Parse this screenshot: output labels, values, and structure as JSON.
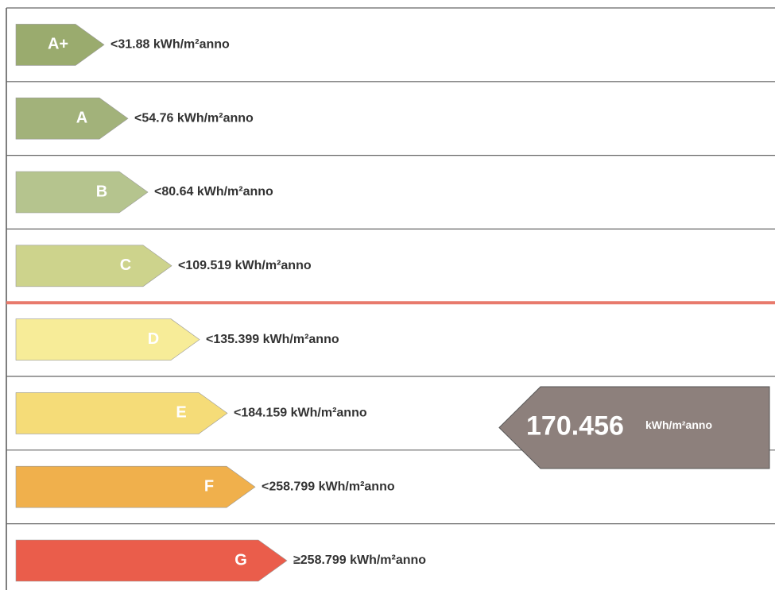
{
  "classes": [
    {
      "label": "A+",
      "threshold": "<31.88 kWh/m²anno",
      "color": "#9aab6e"
    },
    {
      "label": "A",
      "threshold": "<54.76 kWh/m²anno",
      "color": "#a2b27a"
    },
    {
      "label": "B",
      "threshold": "<80.64 kWh/m²anno",
      "color": "#b5c48e"
    },
    {
      "label": "C",
      "threshold": "<109.519 kWh/m²anno",
      "color": "#cdd38c"
    },
    {
      "label": "D",
      "threshold": "<135.399 kWh/m²anno",
      "color": "#f7ec98"
    },
    {
      "label": "E",
      "threshold": "<184.159 kWh/m²anno",
      "color": "#f5dc78"
    },
    {
      "label": "F",
      "threshold": "<258.799 kWh/m²anno",
      "color": "#f0b04c"
    },
    {
      "label": "G",
      "threshold": "≥258.799 kWh/m²anno",
      "color": "#ea5d4b"
    }
  ],
  "indicator": {
    "value": "170.456",
    "unit": "kWh/m²anno",
    "color": "#8d807c"
  }
}
